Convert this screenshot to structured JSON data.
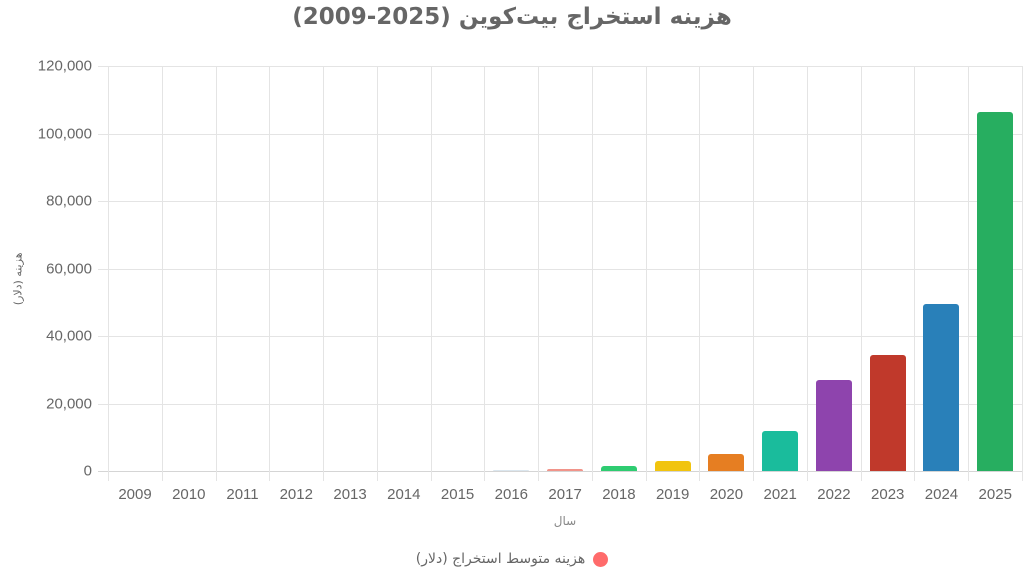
{
  "chart_data": {
    "type": "bar",
    "title": "هزینه استخراج بیت‌کوین (2025-2009)",
    "xlabel": "سال",
    "ylabel": "هزینه (دلار)",
    "ylim": [
      0,
      120000
    ],
    "yticks": [
      "0",
      "20,000",
      "40,000",
      "60,000",
      "80,000",
      "100,000",
      "120,000"
    ],
    "ytick_values": [
      0,
      20000,
      40000,
      60000,
      80000,
      100000,
      120000
    ],
    "grid": true,
    "legend_position": "bottom",
    "categories": [
      "2009",
      "2010",
      "2011",
      "2012",
      "2013",
      "2014",
      "2015",
      "2016",
      "2017",
      "2018",
      "2019",
      "2020",
      "2021",
      "2022",
      "2023",
      "2024",
      "2025"
    ],
    "series": [
      {
        "name": "هزینه متوسط استخراج (دلار)",
        "legend_color": "#ff6b6b",
        "values": [
          0,
          0,
          0,
          0,
          0,
          0,
          0,
          300,
          700,
          1500,
          3000,
          5000,
          12000,
          27000,
          34500,
          49500,
          106400
        ],
        "colors": [
          "#e8eef2",
          "#e8eef2",
          "#e8eef2",
          "#e8eef2",
          "#e8eef2",
          "#e8eef2",
          "#e8eef2",
          "#dbe6ee",
          "#f1948a",
          "#2ecc71",
          "#f1c40f",
          "#e67e22",
          "#1abc9c",
          "#8e44ad",
          "#c0392b",
          "#2980b9",
          "#27ae60"
        ]
      }
    ]
  },
  "legend": {
    "label": "هزینه متوسط استخراج (دلار)",
    "color": "#ff6b6b"
  }
}
